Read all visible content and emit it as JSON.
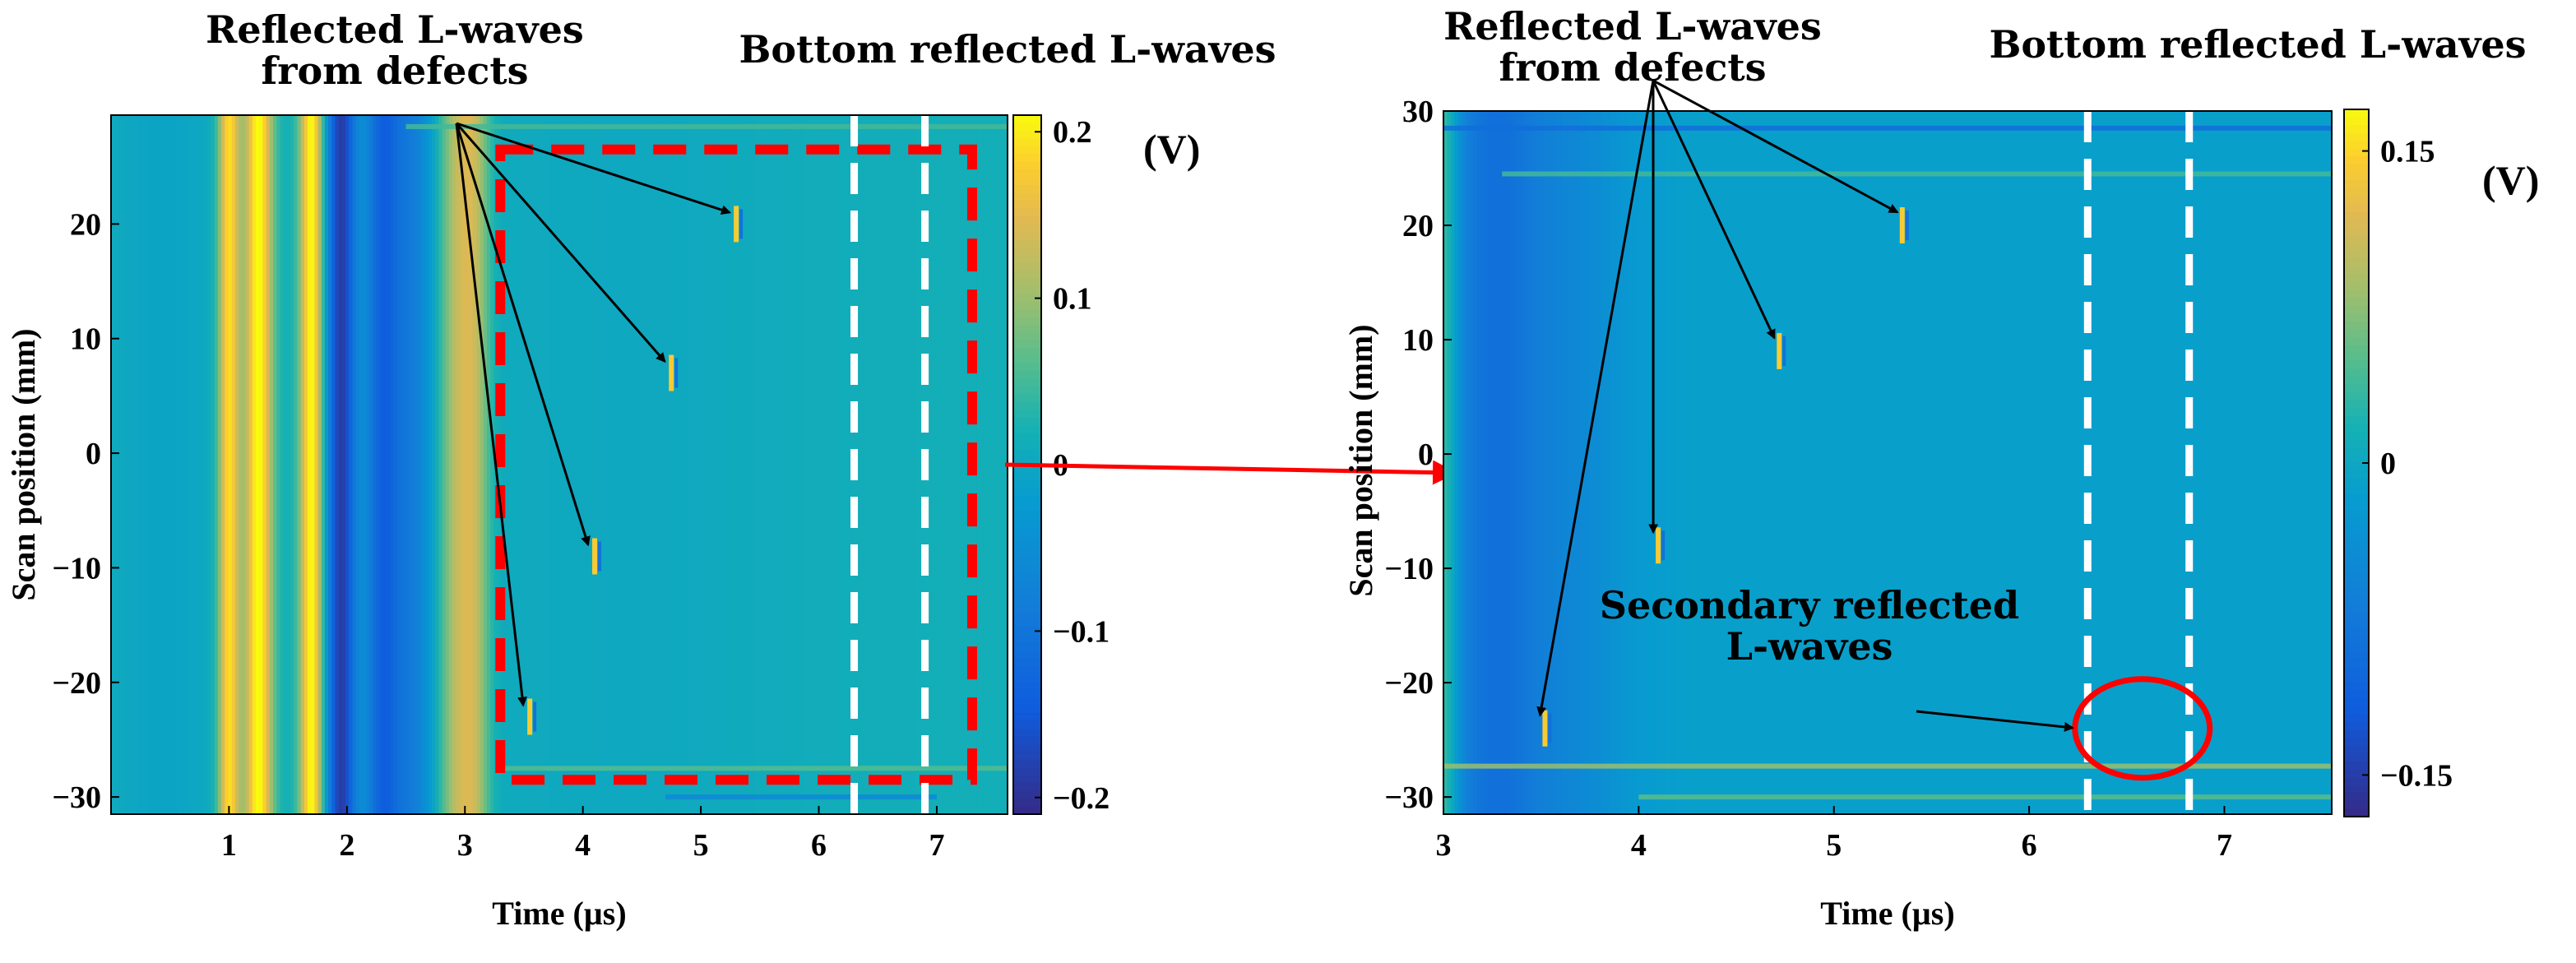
{
  "figure": {
    "cbar_unit": "(V)",
    "annotation_connector_color": "#ff0000"
  },
  "chart_data": [
    {
      "type": "heatmap",
      "title": "",
      "xlabel": "Time (µs)",
      "ylabel": "Scan position (mm)",
      "xlim": [
        0,
        7.6
      ],
      "ylim": [
        -31.5,
        29.5
      ],
      "xticks": [
        1,
        2,
        3,
        4,
        5,
        6,
        7
      ],
      "yticks": [
        -30,
        -20,
        -10,
        0,
        10,
        20
      ],
      "colorbar": {
        "label": "(V)",
        "min": -0.21,
        "max": 0.21,
        "ticks": [
          -0.2,
          -0.1,
          0,
          0.1,
          0.2
        ],
        "tick_labels": [
          "-0.2",
          "-0.1",
          "0",
          "0.1",
          "0.2"
        ]
      },
      "colormap": "parula",
      "bands": [
        {
          "t": 0.45,
          "w": 0.5,
          "v": -0.02
        },
        {
          "t": 1.0,
          "w": 0.09,
          "v": 0.18
        },
        {
          "t": 1.25,
          "w": 0.12,
          "v": 0.2
        },
        {
          "t": 1.7,
          "w": 0.1,
          "v": 0.2
        },
        {
          "t": 1.95,
          "w": 0.13,
          "v": -0.2
        },
        {
          "t": 2.3,
          "w": 0.15,
          "v": -0.14
        },
        {
          "t": 2.55,
          "w": 0.18,
          "v": -0.09
        },
        {
          "t": 2.95,
          "w": 0.16,
          "v": 0.11
        },
        {
          "t": 3.1,
          "w": 0.12,
          "v": 0.07
        }
      ],
      "defect_echoes": [
        {
          "t": 5.3,
          "pos": 20
        },
        {
          "t": 4.75,
          "pos": 7
        },
        {
          "t": 4.1,
          "pos": -9
        },
        {
          "t": 3.55,
          "pos": -23
        }
      ],
      "annotations": [
        {
          "text": "Reflected L-waves",
          "line2": "from defects"
        },
        {
          "text": "Bottom reflected L-waves"
        }
      ],
      "regions": [
        {
          "kind": "dashed-rect",
          "color": "#ff0000",
          "t_range": [
            3.3,
            7.3
          ],
          "pos_range": [
            -28.5,
            26.5
          ]
        },
        {
          "kind": "dashed-vline",
          "color": "#ffffff",
          "t": 6.3
        },
        {
          "kind": "dashed-vline",
          "color": "#ffffff",
          "t": 6.9
        }
      ]
    },
    {
      "type": "heatmap",
      "title": "",
      "xlabel": "Time (µs)",
      "ylabel": "Scan position (mm)",
      "xlim": [
        3,
        7.55
      ],
      "ylim": [
        -31.5,
        30
      ],
      "xticks": [
        3,
        4,
        5,
        6,
        7
      ],
      "yticks": [
        -30,
        -20,
        -10,
        0,
        10,
        20,
        30
      ],
      "colorbar": {
        "label": "(V)",
        "min": -0.17,
        "max": 0.17,
        "ticks": [
          -0.15,
          0,
          0.15
        ],
        "tick_labels": [
          "-0.15",
          "0",
          "0.15"
        ]
      },
      "colormap": "parula",
      "defect_echoes": [
        {
          "t": 5.35,
          "pos": 20
        },
        {
          "t": 4.72,
          "pos": 9
        },
        {
          "t": 4.1,
          "pos": -8
        },
        {
          "t": 3.52,
          "pos": -24
        }
      ],
      "annotations": [
        {
          "text": "Reflected L-waves",
          "line2": "from defects"
        },
        {
          "text": "Bottom reflected L-waves"
        },
        {
          "text": "Secondary reflected",
          "line2": "L-waves"
        }
      ],
      "regions": [
        {
          "kind": "dashed-vline",
          "color": "#ffffff",
          "t": 6.3
        },
        {
          "kind": "dashed-vline",
          "color": "#ffffff",
          "t": 6.82
        },
        {
          "kind": "circle",
          "color": "#ff0000",
          "t": 6.58,
          "pos": -24
        }
      ]
    }
  ]
}
